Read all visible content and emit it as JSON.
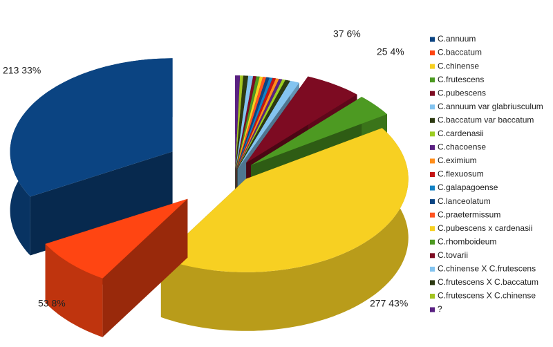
{
  "chart_data": {
    "type": "pie3d",
    "categories": [
      "C.annuum",
      "C.baccatum",
      "C.chinense",
      "C.frutescens",
      "C.pubescens",
      "C.annuum var glabriusculum",
      "C.baccatum var baccatum",
      "C.cardenasii",
      "C.chacoense",
      "C.eximium",
      "C.flexuosum",
      "C.galapagoense",
      "C.lanceolatum",
      "C.praetermissum",
      "C.pubescens x cardenasii",
      "C.rhomboideum",
      "C.tovarii",
      "C.chinense X C.frutescens",
      "C.frutescens X C.baccatum",
      "C.frutescens X C.chinense",
      "?"
    ],
    "values": [
      213,
      53,
      277,
      25,
      37,
      6,
      3,
      2,
      2,
      2,
      2,
      2,
      2,
      2,
      2,
      2,
      2,
      3,
      3,
      2,
      3
    ],
    "value_labels": [
      "213 33%",
      "53 8%",
      "277 43%",
      "25 4%",
      "37 6%",
      null,
      null,
      null,
      null,
      null,
      null,
      null,
      null,
      null,
      null,
      null,
      null,
      null,
      null,
      null,
      null
    ],
    "colors": [
      "#0b4482",
      "#ff4512",
      "#f7d022",
      "#4d9a22",
      "#7d0b22",
      "#84c4f0",
      "#2d3a12",
      "#9ccd22",
      "#5a2182",
      "#ff8e1c",
      "#c41414",
      "#1482c4",
      "#0b4482",
      "#ff5522",
      "#f7d022",
      "#4d9a22",
      "#7d0b22",
      "#84c4f0",
      "#2d3a12",
      "#a4c422",
      "#5a2182"
    ],
    "legend": "right"
  }
}
